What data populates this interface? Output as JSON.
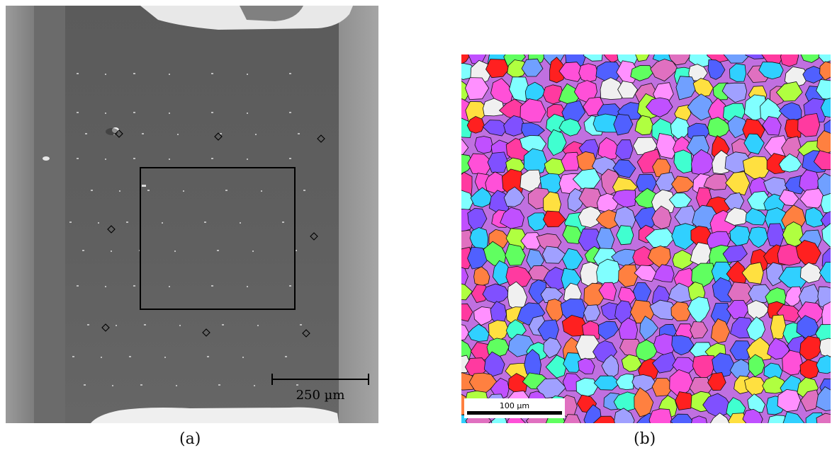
{
  "panel_a": {
    "caption": "(a)",
    "scale_bar_label": "250 µm"
  },
  "panel_b": {
    "caption": "(b)",
    "scale_bar_label": "100 µm"
  },
  "colors": {
    "sem_background": "#6e6e6e",
    "sem_gauge": "#5f5f5f",
    "sem_edges": "#8a8a8a",
    "frame": "#000000"
  }
}
